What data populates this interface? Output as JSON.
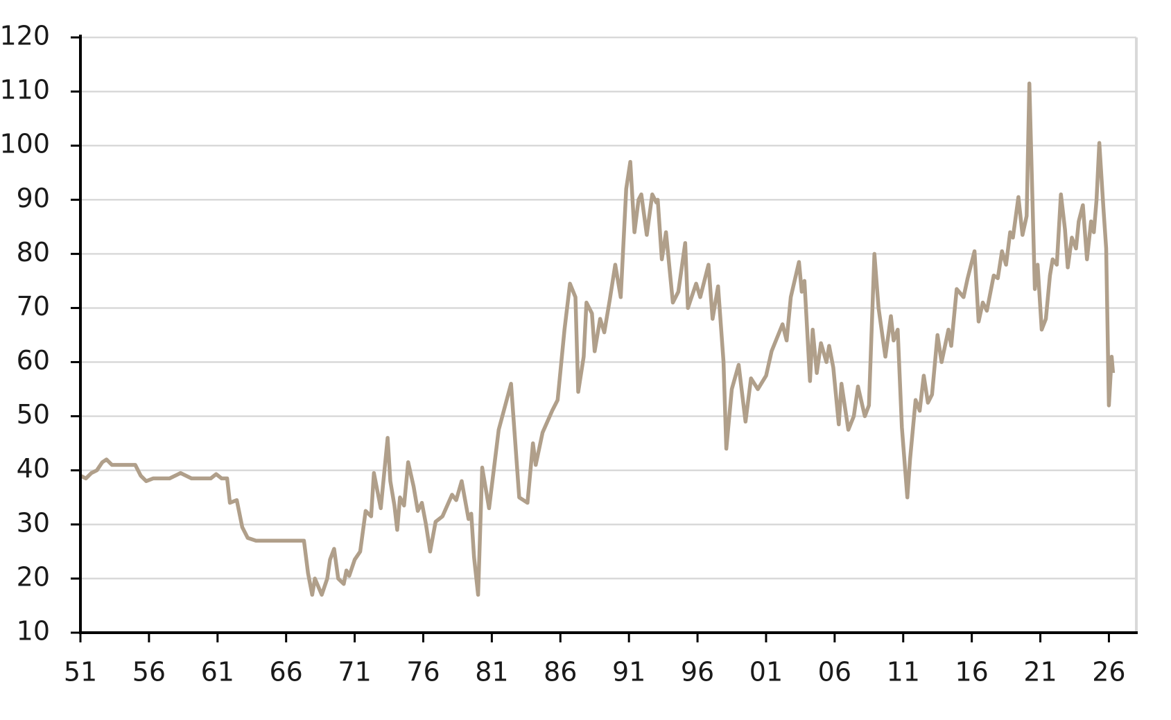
{
  "chart_data": {
    "type": "line",
    "x": [
      1951,
      1951.4,
      1951.8,
      1952.2,
      1952.6,
      1952.9,
      1953.3,
      1955,
      1955.4,
      1955.8,
      1956.3,
      1957.5,
      1958.3,
      1959.1,
      1960.5,
      1960.9,
      1961.3,
      1961.7,
      1961.9,
      1962.4,
      1962.8,
      1963.2,
      1963.8,
      1967.3,
      1967.6,
      1967.9,
      1968.1,
      1968.6,
      1969,
      1969.2,
      1969.5,
      1969.8,
      1970.2,
      1970.4,
      1970.6,
      1971,
      1971.4,
      1971.8,
      1972.2,
      1972.4,
      1972.9,
      1973.4,
      1973.6,
      1973.9,
      1974.1,
      1974.3,
      1974.6,
      1974.9,
      1975.3,
      1975.6,
      1975.9,
      1976.2,
      1976.5,
      1976.9,
      1977.4,
      1978.1,
      1978.4,
      1978.8,
      1979.3,
      1979.5,
      1979.7,
      1980,
      1980.3,
      1980.8,
      1981.5,
      1982.4,
      1983,
      1983.6,
      1984,
      1984.2,
      1984.7,
      1985.4,
      1985.8,
      1986.3,
      1986.7,
      1987.1,
      1987.3,
      1987.7,
      1987.9,
      1988.3,
      1988.5,
      1988.9,
      1989.2,
      1989.6,
      1990,
      1990.4,
      1990.8,
      1991.1,
      1991.4,
      1991.7,
      1991.9,
      1992.3,
      1992.7,
      1993,
      1993.1,
      1993.4,
      1993.7,
      1994.2,
      1994.6,
      1995.1,
      1995.3,
      1995.9,
      1996.2,
      1996.8,
      1997.1,
      1997.5,
      1997.9,
      1998.1,
      1998.5,
      1999,
      1999.5,
      1999.9,
      2000.4,
      2001,
      2001.4,
      2002.2,
      2002.5,
      2002.8,
      2003.4,
      2003.6,
      2003.8,
      2004.2,
      2004.4,
      2004.7,
      2005,
      2005.4,
      2005.6,
      2005.9,
      2006.3,
      2006.5,
      2007,
      2007.4,
      2007.7,
      2008.2,
      2008.5,
      2008.9,
      2009.2,
      2009.7,
      2010.1,
      2010.3,
      2010.6,
      2010.9,
      2011.3,
      2011.5,
      2011.9,
      2012.2,
      2012.5,
      2012.8,
      2013.1,
      2013.5,
      2013.8,
      2014.3,
      2014.5,
      2014.9,
      2015.4,
      2015.7,
      2016.2,
      2016.5,
      2016.8,
      2017.1,
      2017.6,
      2017.9,
      2018.2,
      2018.5,
      2018.8,
      2019,
      2019.4,
      2019.7,
      2020,
      2020.2,
      2020.6,
      2020.8,
      2021.1,
      2021.4,
      2021.7,
      2021.9,
      2022.2,
      2022.5,
      2022.8,
      2023,
      2023.3,
      2023.6,
      2023.8,
      2024.1,
      2024.4,
      2024.7,
      2024.9,
      2025.1,
      2025.3,
      2025.6,
      2025.8,
      2026,
      2026.2,
      2026.3
    ],
    "series": [
      {
        "color": "#b09f8a",
        "values": [
          39,
          38.5,
          39.5,
          40,
          41.5,
          42,
          41,
          41,
          39,
          38,
          38.5,
          38.5,
          39.5,
          38.5,
          38.5,
          39.3,
          38.5,
          38.5,
          34,
          34.5,
          29.5,
          27.5,
          27,
          27,
          21,
          17,
          20,
          17,
          20,
          23.5,
          25.5,
          20,
          19,
          21.5,
          20.5,
          23.5,
          25,
          32.5,
          31.5,
          39.5,
          33,
          46,
          38,
          33.5,
          29,
          35,
          33.5,
          41.5,
          37,
          32.5,
          34,
          30,
          25,
          30.5,
          31.5,
          35.5,
          34.5,
          38,
          31,
          32,
          24,
          17,
          40.5,
          33,
          47.5,
          56,
          35,
          34,
          45,
          41,
          47,
          51,
          53,
          66,
          74.5,
          72,
          54.5,
          61,
          71,
          69,
          62,
          68,
          65.5,
          71.5,
          78,
          72,
          92,
          97,
          84,
          90,
          91,
          83.5,
          91,
          89.5,
          90,
          79,
          84,
          71,
          73,
          82,
          70,
          74.5,
          72,
          78,
          68,
          74,
          60,
          44,
          55,
          59.5,
          49,
          57,
          55,
          57.5,
          62,
          67,
          64,
          72,
          78.5,
          73,
          75,
          56.5,
          66,
          58,
          63.5,
          60,
          63,
          59,
          48.5,
          56,
          47.5,
          50,
          55.5,
          50,
          52,
          80,
          70,
          61,
          68.5,
          64,
          66,
          48,
          35,
          42,
          53,
          51,
          57.5,
          52.5,
          54,
          65,
          60,
          66,
          63,
          73.5,
          72,
          75.5,
          80.5,
          67.5,
          71,
          69.5,
          76,
          75.5,
          80.5,
          78,
          84,
          83,
          90.5,
          83.5,
          87,
          111.5,
          73.5,
          78,
          66,
          68,
          76,
          79,
          78,
          91,
          84.5,
          77.5,
          83,
          81,
          86,
          89,
          79,
          86,
          84,
          90,
          100.5,
          88.5,
          81,
          52,
          61,
          58
        ]
      }
    ],
    "xlim": [
      1951,
      2028
    ],
    "ylim": [
      10,
      120
    ],
    "xticks": [
      {
        "value": 1951,
        "label": "51"
      },
      {
        "value": 1956,
        "label": "56"
      },
      {
        "value": 1961,
        "label": "61"
      },
      {
        "value": 1966,
        "label": "66"
      },
      {
        "value": 1971,
        "label": "71"
      },
      {
        "value": 1976,
        "label": "76"
      },
      {
        "value": 1981,
        "label": "81"
      },
      {
        "value": 1986,
        "label": "86"
      },
      {
        "value": 1991,
        "label": "91"
      },
      {
        "value": 1996,
        "label": "96"
      },
      {
        "value": 2001,
        "label": "01"
      },
      {
        "value": 2006,
        "label": "06"
      },
      {
        "value": 2011,
        "label": "11"
      },
      {
        "value": 2016,
        "label": "16"
      },
      {
        "value": 2021,
        "label": "21"
      },
      {
        "value": 2026,
        "label": "26"
      }
    ],
    "yticks": [
      10,
      20,
      30,
      40,
      50,
      60,
      70,
      80,
      90,
      100,
      110,
      120
    ],
    "grid": true
  }
}
